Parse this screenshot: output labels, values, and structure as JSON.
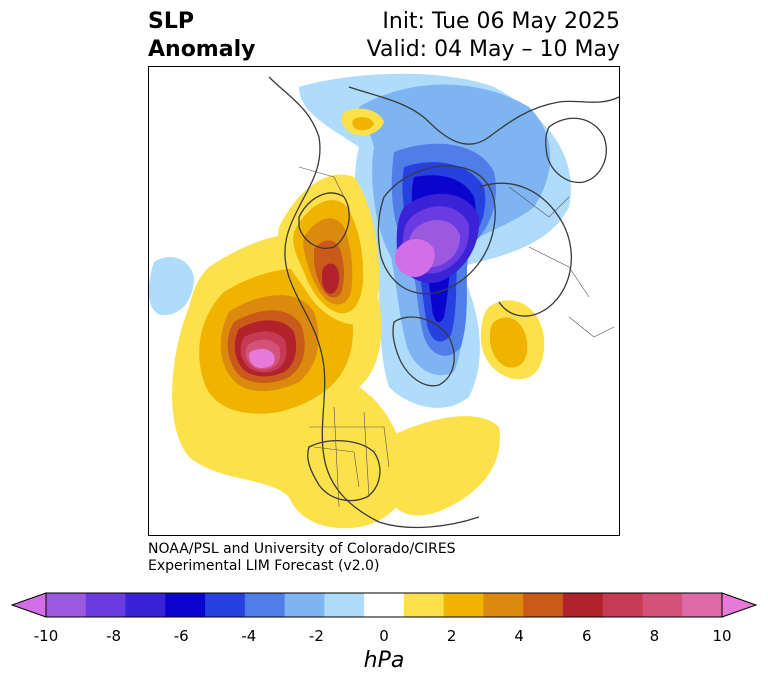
{
  "header": {
    "title_line1": "SLP",
    "title_line2": "Anomaly",
    "init_text": "Init: Tue 06 May 2025",
    "valid_text": "Valid: 04 May – 10 May"
  },
  "credit": {
    "line1": "NOAA/PSL and University of Colorado/CIRES",
    "line2": "Experimental LIM Forecast (v2.0)"
  },
  "colorbar": {
    "ticks": [
      "-10",
      "-8",
      "-6",
      "-4",
      "-2",
      "0",
      "2",
      "4",
      "6",
      "8",
      "10"
    ],
    "units": "hPa",
    "colors": [
      "#d46ee6",
      "#9b59e0",
      "#6a3be0",
      "#3a22d6",
      "#0b04cf",
      "#2740e0",
      "#4f7ee8",
      "#7eb4f2",
      "#aedcfa",
      "#ffffff",
      "#fde14a",
      "#f0b400",
      "#dc8a0e",
      "#c95a1a",
      "#b2222a",
      "#c63a55",
      "#d4527a",
      "#db6aa6",
      "#e67ad8"
    ]
  }
}
